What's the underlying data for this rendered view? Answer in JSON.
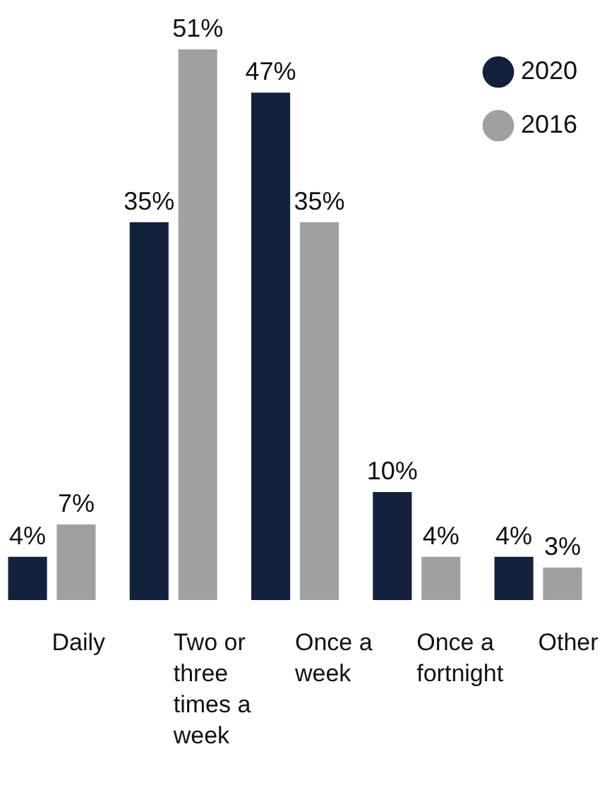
{
  "chart_data": {
    "type": "bar",
    "categories": [
      "Daily",
      "Two or three times a week",
      "Once a week",
      "Once a fortnight",
      "Other"
    ],
    "series": [
      {
        "name": "2020",
        "color": "#14213d",
        "values": [
          4,
          35,
          47,
          10,
          4
        ],
        "value_labels": [
          "4%",
          "35%",
          "47%",
          "10%",
          "4%"
        ]
      },
      {
        "name": "2016",
        "color": "#a0a0a0",
        "values": [
          7,
          51,
          35,
          4,
          3
        ],
        "value_labels": [
          "7%",
          "51%",
          "35%",
          "4%",
          "3%"
        ]
      }
    ],
    "legend": "top right",
    "marker": "circle"
  }
}
